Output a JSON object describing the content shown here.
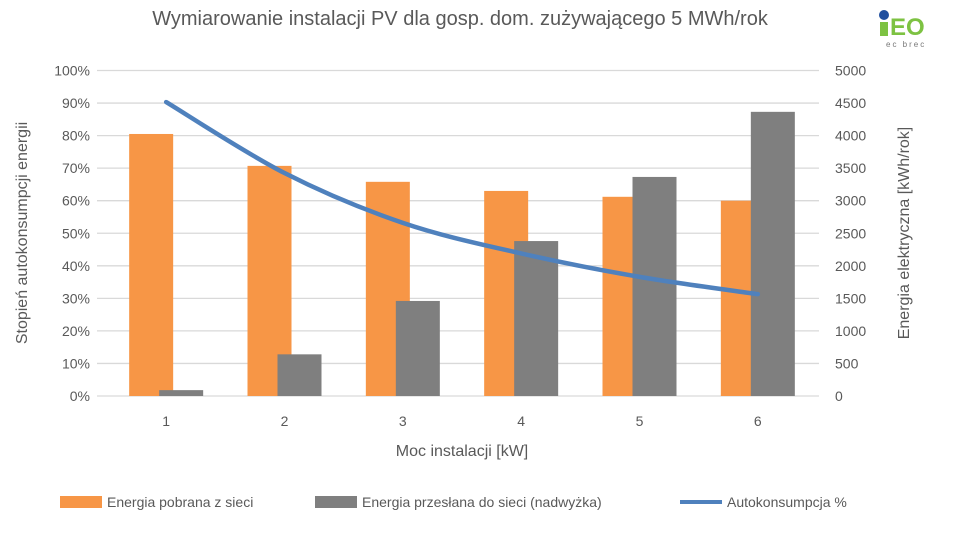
{
  "chart_data": {
    "type": "bar+line",
    "title": "Wymiarowanie instalacji PV dla gosp. dom. zużywającego 5 MWh/rok",
    "xlabel": "Moc instalacji [kW]",
    "ylabel_left": "Stopień autokonsumpcji energii",
    "ylabel_right": "Energia elektryczna [kWh/rok]",
    "categories": [
      "1",
      "2",
      "3",
      "4",
      "5",
      "6"
    ],
    "ylim_left": [
      0,
      100
    ],
    "ylim_right": [
      0,
      5000
    ],
    "yticks_left": [
      "0%",
      "10%",
      "20%",
      "30%",
      "40%",
      "50%",
      "60%",
      "70%",
      "80%",
      "90%",
      "100%"
    ],
    "yticks_right": [
      "0",
      "500",
      "1000",
      "1500",
      "2000",
      "2500",
      "3000",
      "3500",
      "4000",
      "4500",
      "5000"
    ],
    "grid": true,
    "legend_position": "bottom",
    "series": [
      {
        "name": "Energia pobrana z sieci",
        "kind": "bar",
        "axis": "right",
        "color": "#F79646",
        "values": [
          4025,
          3535,
          3290,
          3150,
          3060,
          3000
        ]
      },
      {
        "name": "Energia przesłana do sieci (nadwyżka)",
        "kind": "bar",
        "axis": "right",
        "color": "#7F7F7F",
        "values": [
          90,
          640,
          1460,
          2380,
          3365,
          4365
        ]
      },
      {
        "name": "Autokonsumpcja %",
        "kind": "line",
        "axis": "left",
        "color": "#4F81BD",
        "values": [
          90.3,
          68.5,
          53.2,
          43.8,
          36.6,
          31.3
        ]
      }
    ]
  },
  "logo": {
    "text": "iEO",
    "subtext": "ec brec",
    "colors": {
      "dot": "#1F4E9E",
      "letters": "#7DC242"
    }
  }
}
